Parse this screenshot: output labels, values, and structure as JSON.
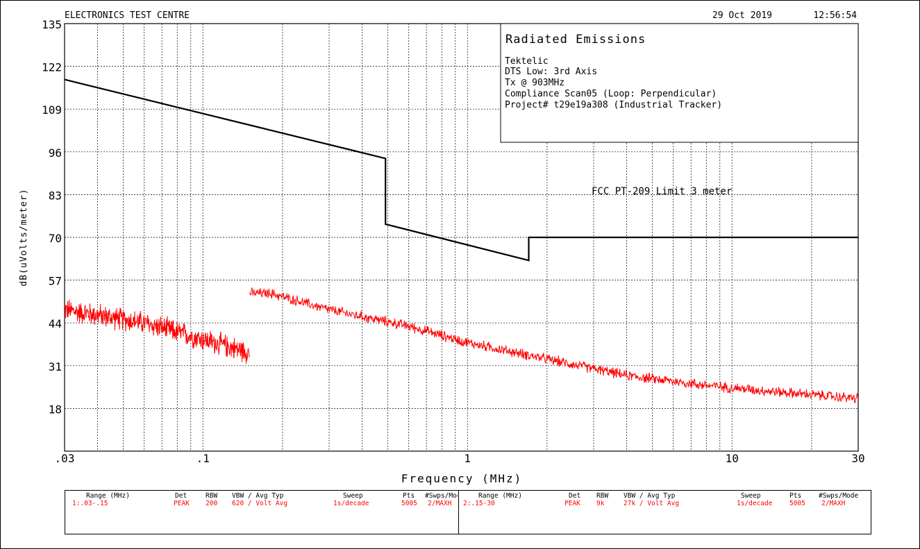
{
  "header": {
    "lab_name": "ELECTRONICS TEST CENTRE",
    "date": "29 Oct 2019",
    "time": "12:56:54"
  },
  "info_box": {
    "title": "Radiated Emissions",
    "lines": [
      "Tektelic",
      "DTS Low: 3rd Axis",
      "Tx @ 903MHz",
      "Compliance Scan05 (Loop: Perpendicular)",
      "Project# t29e19a308 (Industrial Tracker)"
    ]
  },
  "chart_data": {
    "type": "line",
    "xlabel": "Frequency (MHz)",
    "ylabel": "dB(uVolts/meter)",
    "x_scale": "log",
    "xlim": [
      0.03,
      30
    ],
    "ylim": [
      5,
      135
    ],
    "y_ticks": [
      "135",
      "122",
      "109",
      "96",
      "83",
      "70",
      "57",
      "44",
      "31",
      "18"
    ],
    "x_ticks": [
      {
        "value": 0.03,
        "label": ".03"
      },
      {
        "value": 0.1,
        "label": ".1"
      },
      {
        "value": 1,
        "label": "1"
      },
      {
        "value": 10,
        "label": "10"
      },
      {
        "value": 30,
        "label": "30"
      }
    ],
    "grid": true,
    "limit_label": "FCC PT-209 Limit 3 meter",
    "limit_line": {
      "color": "#000000",
      "x": [
        0.03,
        0.49,
        0.49,
        1.705,
        1.705,
        30
      ],
      "y": [
        118,
        94,
        74,
        63,
        70,
        70
      ]
    },
    "series": [
      {
        "color": "#ff0000",
        "segments": [
          {
            "x": [
              0.03,
              0.06,
              0.1,
              0.15
            ],
            "y": [
              48,
              44,
              39,
              35
            ],
            "noise": 3.5
          },
          {
            "x": [
              0.15,
              0.18,
              0.3,
              0.6,
              1,
              2,
              4,
              8,
              15,
              30
            ],
            "y": [
              53,
              53,
              48,
              43,
              38,
              33,
              28,
              25,
              23,
              21
            ],
            "noise": 1.6
          }
        ]
      }
    ]
  },
  "settings_table": {
    "headers": [
      "Range (MHz)",
      "Det",
      "RBW",
      "VBW / Avg Typ",
      "Sweep",
      "Pts",
      "#Swps/Mode"
    ],
    "rows": [
      {
        "range": "1:.03-.15",
        "det": "PEAK",
        "rbw": "200",
        "vbw": "620 / Volt Avg",
        "sweep": "1s/decade",
        "pts": "5005",
        "mode": "2/MAXH"
      },
      {
        "range": "2:.15-30",
        "det": "PEAK",
        "rbw": "9k",
        "vbw": "27k / Volt Avg",
        "sweep": "1s/decade",
        "pts": "5005",
        "mode": "2/MAXH"
      }
    ]
  },
  "colors": {
    "trace": "#ff0000",
    "limit": "#000000",
    "grid": "#000000",
    "table_values": "#ff0000"
  }
}
